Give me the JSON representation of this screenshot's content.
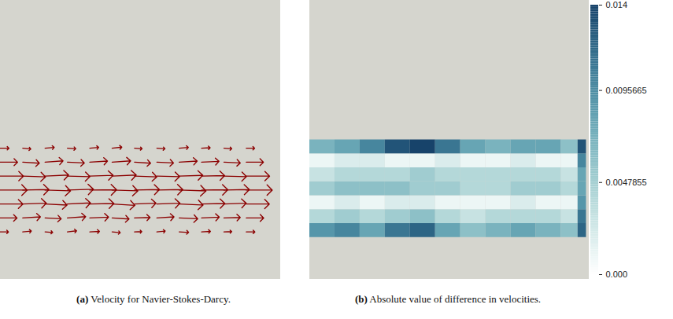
{
  "chart_data": [
    {
      "type": "vector",
      "title": "(a) Velocity for Navier-Stokes-Darcy.",
      "xlim": [
        0,
        1
      ],
      "ylim": [
        0,
        1
      ],
      "tick_labels": false,
      "color": "#8b0000",
      "x": [
        0,
        0.08,
        0.16,
        0.24,
        0.32,
        0.4,
        0.48,
        0.56,
        0.64,
        0.72,
        0.8,
        0.88
      ],
      "y": [
        0.17,
        0.22,
        0.27,
        0.32,
        0.37,
        0.42,
        0.47
      ],
      "u": [
        [
          0.3,
          0.32,
          0.28,
          0.34,
          0.36,
          0.3,
          0.27,
          0.31,
          0.35,
          0.33,
          0.29,
          0.32
        ],
        [
          0.62,
          0.66,
          0.6,
          0.68,
          0.7,
          0.63,
          0.58,
          0.64,
          0.69,
          0.66,
          0.61,
          0.65
        ],
        [
          0.84,
          0.88,
          0.82,
          0.86,
          0.9,
          0.85,
          0.8,
          0.86,
          0.89,
          0.87,
          0.83,
          0.86
        ],
        [
          1.0,
          0.98,
          0.95,
          0.97,
          1.0,
          0.96,
          0.93,
          0.97,
          1.0,
          0.98,
          0.95,
          0.97
        ],
        [
          0.86,
          0.85,
          0.88,
          0.84,
          0.87,
          0.9,
          0.83,
          0.85,
          0.88,
          0.86,
          0.84,
          0.87
        ],
        [
          0.64,
          0.62,
          0.67,
          0.63,
          0.66,
          0.69,
          0.6,
          0.62,
          0.67,
          0.65,
          0.61,
          0.64
        ],
        [
          0.32,
          0.3,
          0.34,
          0.31,
          0.33,
          0.36,
          0.28,
          0.3,
          0.34,
          0.32,
          0.29,
          0.31
        ]
      ],
      "v": [
        [
          0.0,
          0.03,
          -0.02,
          0.04,
          0.02,
          -0.03,
          0.01,
          0.03,
          -0.02,
          0.02,
          0.01,
          0.0
        ],
        [
          0.0,
          0.04,
          -0.03,
          0.05,
          0.03,
          -0.04,
          0.02,
          0.04,
          -0.03,
          0.03,
          0.02,
          0.0
        ],
        [
          0.0,
          0.03,
          -0.04,
          0.04,
          0.02,
          -0.05,
          0.03,
          0.03,
          -0.04,
          0.02,
          0.03,
          0.0
        ],
        [
          0.0,
          0.02,
          -0.03,
          0.03,
          0.01,
          -0.03,
          0.02,
          0.02,
          -0.03,
          0.01,
          0.02,
          0.0
        ],
        [
          0.0,
          -0.03,
          0.04,
          -0.02,
          0.03,
          0.04,
          -0.03,
          -0.02,
          0.03,
          0.02,
          -0.02,
          0.0
        ],
        [
          0.0,
          -0.04,
          0.05,
          -0.03,
          0.04,
          0.05,
          -0.04,
          -0.03,
          0.04,
          0.03,
          -0.03,
          0.0
        ],
        [
          0.0,
          -0.03,
          0.03,
          -0.02,
          0.03,
          0.04,
          -0.02,
          -0.02,
          0.03,
          0.02,
          -0.02,
          0.0
        ]
      ]
    },
    {
      "type": "heatmap",
      "title": "(b) Absolute value of difference in velocities.",
      "xlim": [
        0,
        1
      ],
      "ylim": [
        0,
        1
      ],
      "tick_labels": false,
      "x_edges": [
        0,
        0.09,
        0.18,
        0.27,
        0.36,
        0.45,
        0.54,
        0.63,
        0.72,
        0.81,
        0.9,
        0.96,
        0.99
      ],
      "y_edges": [
        0.15,
        0.2,
        0.25,
        0.3,
        0.35,
        0.4,
        0.45,
        0.5
      ],
      "cells": [
        [
          0.009,
          0.01,
          0.008,
          0.011,
          0.012,
          0.008,
          0.006,
          0.007,
          0.008,
          0.007,
          0.006,
          0.012
        ],
        [
          0.004,
          0.005,
          0.004,
          0.005,
          0.006,
          0.004,
          0.003,
          0.004,
          0.004,
          0.004,
          0.003,
          0.011
        ],
        [
          0.001,
          0.002,
          0.001,
          0.002,
          0.002,
          0.001,
          0.001,
          0.001,
          0.002,
          0.001,
          0.001,
          0.009
        ],
        [
          0.005,
          0.006,
          0.006,
          0.006,
          0.005,
          0.005,
          0.004,
          0.004,
          0.005,
          0.005,
          0.004,
          0.008
        ],
        [
          0.003,
          0.004,
          0.004,
          0.004,
          0.005,
          0.004,
          0.004,
          0.004,
          0.004,
          0.004,
          0.003,
          0.008
        ],
        [
          0.001,
          0.002,
          0.002,
          0.001,
          0.001,
          0.002,
          0.001,
          0.001,
          0.002,
          0.001,
          0.001,
          0.01
        ],
        [
          0.007,
          0.008,
          0.01,
          0.013,
          0.014,
          0.011,
          0.008,
          0.007,
          0.008,
          0.008,
          0.006,
          0.013
        ]
      ],
      "colorbar": {
        "range": [
          0,
          0.014
        ],
        "ticks": [
          {
            "value": 0,
            "label": "0.000"
          },
          0.0047855,
          0.0095665,
          0.014
        ]
      }
    }
  ]
}
